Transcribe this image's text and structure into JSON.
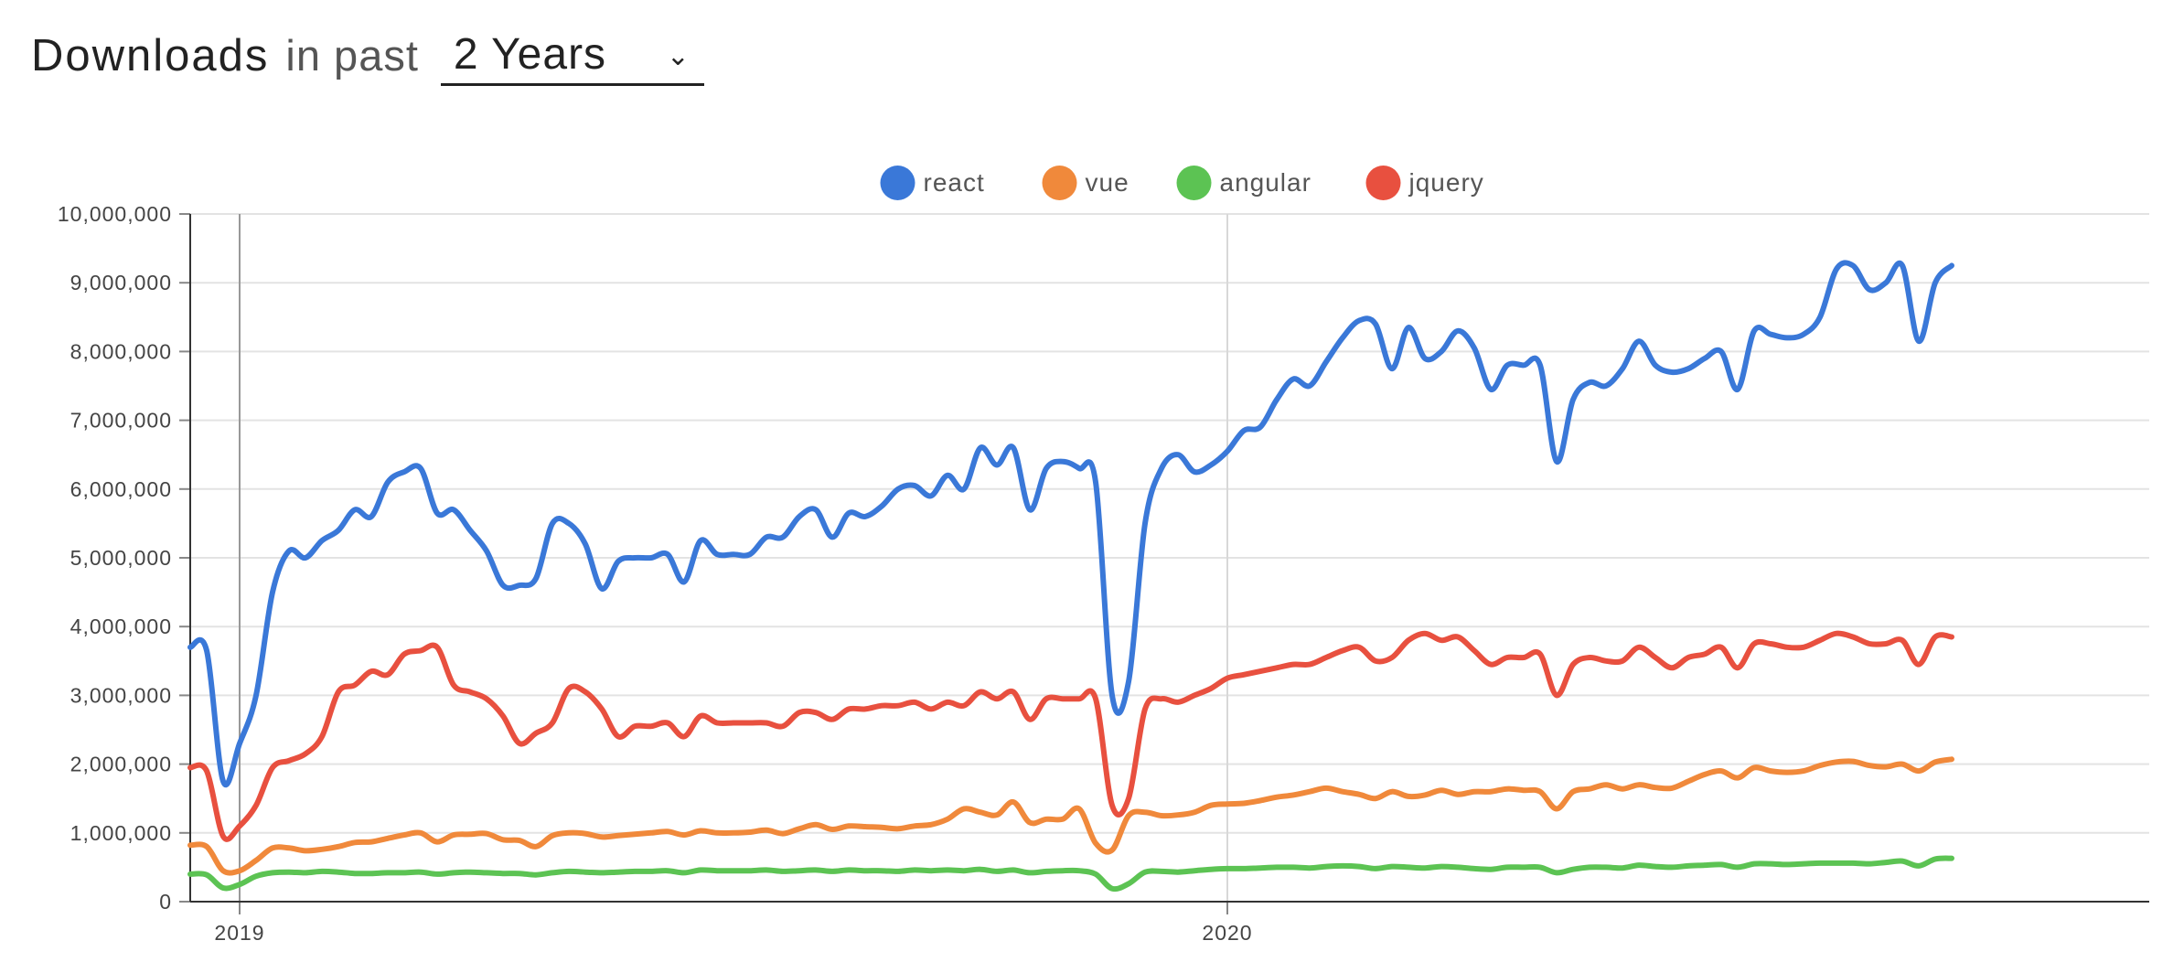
{
  "header": {
    "title": "Downloads",
    "subtitle": "in past",
    "range_value": "2 Years",
    "chevron_icon": "chevron-down-icon"
  },
  "chart_data": {
    "type": "line",
    "ylim": [
      0,
      10000000
    ],
    "y_ticks": [
      "0",
      "1,000,000",
      "2,000,000",
      "3,000,000",
      "4,000,000",
      "5,000,000",
      "6,000,000",
      "7,000,000",
      "8,000,000",
      "9,000,000",
      "10,000,000"
    ],
    "y_tick_values": [
      0,
      1000000,
      2000000,
      3000000,
      4000000,
      5000000,
      6000000,
      7000000,
      8000000,
      9000000,
      10000000
    ],
    "x_ticks": [
      "2019",
      "2020"
    ],
    "x_tick_values": [
      3,
      63
    ],
    "x_range": [
      0,
      119
    ],
    "grid": true,
    "legend_position": "top-center",
    "series": [
      {
        "name": "react",
        "color": "#3a78d8",
        "values": [
          3700000,
          3650000,
          1750000,
          2300000,
          3000000,
          4500000,
          5100000,
          5000000,
          5250000,
          5400000,
          5700000,
          5600000,
          6100000,
          6250000,
          6300000,
          5650000,
          5700000,
          5400000,
          5100000,
          4600000,
          4600000,
          4700000,
          5500000,
          5500000,
          5200000,
          4550000,
          4950000,
          5000000,
          5000000,
          5050000,
          4650000,
          5250000,
          5050000,
          5050000,
          5050000,
          5300000,
          5300000,
          5600000,
          5700000,
          5300000,
          5650000,
          5600000,
          5750000,
          6000000,
          6050000,
          5900000,
          6200000,
          6000000,
          6600000,
          6350000,
          6600000,
          5700000,
          6300000,
          6400000,
          6300000,
          6100000,
          3000000,
          3200000,
          5500000,
          6300000,
          6500000,
          6250000,
          6350000,
          6550000,
          6850000,
          6900000,
          7300000,
          7600000,
          7500000,
          7850000,
          8200000,
          8450000,
          8400000,
          7750000,
          8350000,
          7900000,
          8000000,
          8300000,
          8050000,
          7450000,
          7800000,
          7800000,
          7800000,
          6400000,
          7300000,
          7550000,
          7500000,
          7750000,
          8150000,
          7800000,
          7700000,
          7750000,
          7900000,
          8000000,
          7450000,
          8300000,
          8250000,
          8200000,
          8250000,
          8500000,
          9200000,
          9250000,
          8900000,
          9000000,
          9250000,
          8150000,
          9000000,
          9250000
        ]
      },
      {
        "name": "vue",
        "color": "#f0893b",
        "values": [
          820000,
          800000,
          450000,
          450000,
          600000,
          780000,
          780000,
          740000,
          760000,
          800000,
          860000,
          870000,
          920000,
          970000,
          1000000,
          870000,
          970000,
          980000,
          990000,
          900000,
          890000,
          800000,
          960000,
          1000000,
          990000,
          940000,
          960000,
          980000,
          1000000,
          1020000,
          970000,
          1030000,
          1000000,
          1000000,
          1010000,
          1040000,
          990000,
          1060000,
          1120000,
          1050000,
          1100000,
          1090000,
          1080000,
          1060000,
          1100000,
          1120000,
          1200000,
          1350000,
          1300000,
          1260000,
          1450000,
          1150000,
          1200000,
          1200000,
          1350000,
          850000,
          750000,
          1250000,
          1300000,
          1250000,
          1260000,
          1300000,
          1400000,
          1420000,
          1430000,
          1470000,
          1520000,
          1550000,
          1600000,
          1650000,
          1600000,
          1560000,
          1500000,
          1600000,
          1530000,
          1550000,
          1620000,
          1560000,
          1600000,
          1600000,
          1640000,
          1620000,
          1600000,
          1350000,
          1600000,
          1640000,
          1700000,
          1640000,
          1700000,
          1660000,
          1650000,
          1750000,
          1850000,
          1900000,
          1800000,
          1950000,
          1900000,
          1880000,
          1900000,
          1980000,
          2030000,
          2040000,
          1980000,
          1960000,
          2000000,
          1900000,
          2030000,
          2070000
        ]
      },
      {
        "name": "angular",
        "color": "#5cc353",
        "values": [
          400000,
          390000,
          200000,
          250000,
          370000,
          420000,
          430000,
          420000,
          440000,
          430000,
          410000,
          410000,
          420000,
          420000,
          430000,
          400000,
          420000,
          430000,
          420000,
          410000,
          410000,
          390000,
          420000,
          440000,
          430000,
          420000,
          430000,
          440000,
          440000,
          450000,
          420000,
          460000,
          450000,
          450000,
          450000,
          460000,
          440000,
          450000,
          460000,
          440000,
          460000,
          450000,
          450000,
          440000,
          460000,
          450000,
          460000,
          450000,
          470000,
          440000,
          460000,
          420000,
          440000,
          450000,
          450000,
          400000,
          190000,
          260000,
          430000,
          440000,
          430000,
          450000,
          470000,
          480000,
          480000,
          490000,
          500000,
          500000,
          490000,
          510000,
          520000,
          510000,
          480000,
          510000,
          500000,
          490000,
          510000,
          500000,
          480000,
          470000,
          500000,
          500000,
          500000,
          420000,
          470000,
          500000,
          500000,
          490000,
          530000,
          510000,
          500000,
          520000,
          530000,
          540000,
          500000,
          550000,
          550000,
          540000,
          550000,
          560000,
          560000,
          560000,
          550000,
          570000,
          590000,
          520000,
          620000,
          630000
        ]
      },
      {
        "name": "jquery",
        "color": "#e8503f",
        "values": [
          1950000,
          1900000,
          950000,
          1100000,
          1400000,
          1950000,
          2050000,
          2150000,
          2400000,
          3050000,
          3150000,
          3350000,
          3300000,
          3600000,
          3650000,
          3700000,
          3150000,
          3050000,
          2950000,
          2700000,
          2300000,
          2450000,
          2600000,
          3100000,
          3050000,
          2800000,
          2400000,
          2550000,
          2550000,
          2600000,
          2400000,
          2700000,
          2600000,
          2600000,
          2600000,
          2600000,
          2550000,
          2750000,
          2750000,
          2650000,
          2800000,
          2800000,
          2850000,
          2850000,
          2900000,
          2800000,
          2900000,
          2850000,
          3050000,
          2950000,
          3050000,
          2650000,
          2950000,
          2950000,
          2950000,
          2950000,
          1400000,
          1500000,
          2800000,
          2950000,
          2900000,
          3000000,
          3100000,
          3250000,
          3300000,
          3350000,
          3400000,
          3450000,
          3450000,
          3550000,
          3650000,
          3700000,
          3500000,
          3550000,
          3800000,
          3900000,
          3800000,
          3850000,
          3650000,
          3450000,
          3550000,
          3550000,
          3600000,
          3000000,
          3450000,
          3550000,
          3500000,
          3500000,
          3700000,
          3550000,
          3400000,
          3550000,
          3600000,
          3700000,
          3400000,
          3750000,
          3750000,
          3700000,
          3700000,
          3800000,
          3900000,
          3850000,
          3750000,
          3750000,
          3800000,
          3450000,
          3850000,
          3850000
        ]
      }
    ]
  }
}
